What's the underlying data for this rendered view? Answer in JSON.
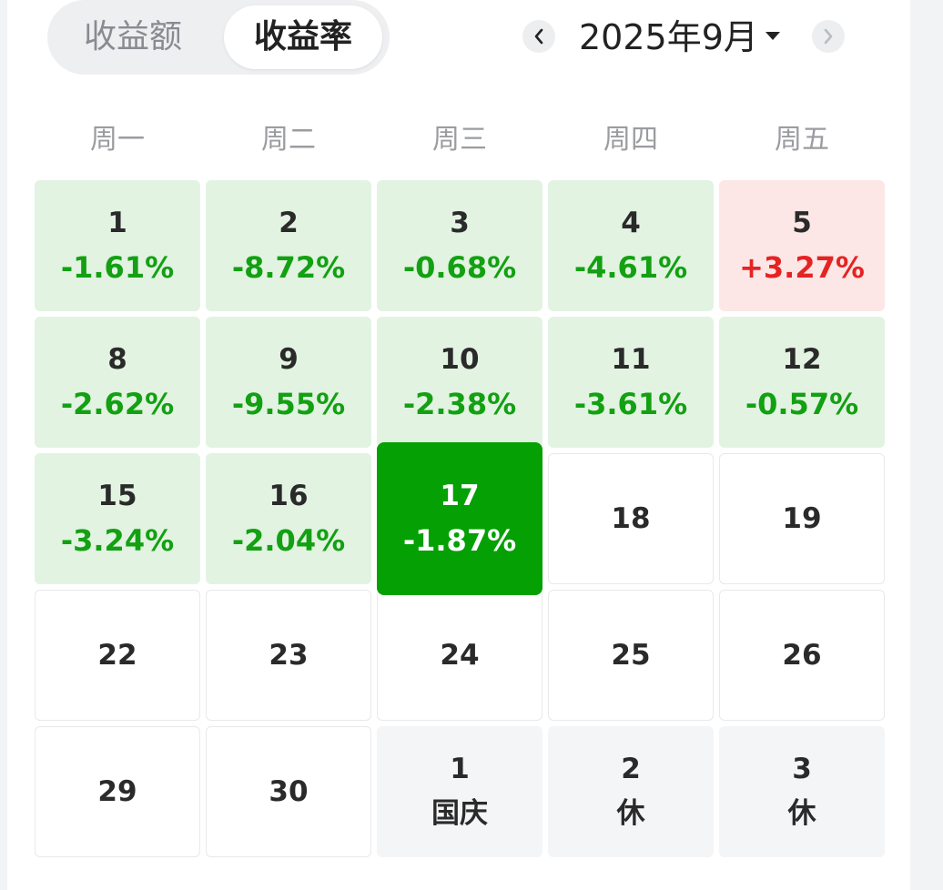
{
  "tabs": [
    {
      "label": "收益额",
      "active": false
    },
    {
      "label": "收益率",
      "active": true
    }
  ],
  "month_label": "2025年9月",
  "icons": {
    "prev": "chevron-left-icon",
    "next": "chevron-right-icon",
    "dropdown": "caret-down-icon"
  },
  "colors": {
    "loss_green": "#13a012",
    "gain_red": "#e52323",
    "today_green": "#04a004"
  },
  "weekdays": [
    "周一",
    "周二",
    "周三",
    "周四",
    "周五"
  ],
  "weeks": [
    [
      {
        "day": "1",
        "value": "-1.61%",
        "status": "down"
      },
      {
        "day": "2",
        "value": "-8.72%",
        "status": "down"
      },
      {
        "day": "3",
        "value": "-0.68%",
        "status": "down"
      },
      {
        "day": "4",
        "value": "-4.61%",
        "status": "down"
      },
      {
        "day": "5",
        "value": "+3.27%",
        "status": "up"
      }
    ],
    [
      {
        "day": "8",
        "value": "-2.62%",
        "status": "down"
      },
      {
        "day": "9",
        "value": "-9.55%",
        "status": "down"
      },
      {
        "day": "10",
        "value": "-2.38%",
        "status": "down"
      },
      {
        "day": "11",
        "value": "-3.61%",
        "status": "down"
      },
      {
        "day": "12",
        "value": "-0.57%",
        "status": "down"
      }
    ],
    [
      {
        "day": "15",
        "value": "-3.24%",
        "status": "down"
      },
      {
        "day": "16",
        "value": "-2.04%",
        "status": "down"
      },
      {
        "day": "17",
        "value": "-1.87%",
        "status": "today"
      },
      {
        "day": "18",
        "value": "",
        "status": "empty"
      },
      {
        "day": "19",
        "value": "",
        "status": "empty"
      }
    ],
    [
      {
        "day": "22",
        "value": "",
        "status": "empty"
      },
      {
        "day": "23",
        "value": "",
        "status": "empty"
      },
      {
        "day": "24",
        "value": "",
        "status": "empty"
      },
      {
        "day": "25",
        "value": "",
        "status": "empty"
      },
      {
        "day": "26",
        "value": "",
        "status": "empty"
      }
    ],
    [
      {
        "day": "29",
        "value": "",
        "status": "empty"
      },
      {
        "day": "30",
        "value": "",
        "status": "empty"
      },
      {
        "day": "1",
        "value": "国庆",
        "status": "holiday"
      },
      {
        "day": "2",
        "value": "休",
        "status": "holiday"
      },
      {
        "day": "3",
        "value": "休",
        "status": "holiday"
      }
    ]
  ]
}
